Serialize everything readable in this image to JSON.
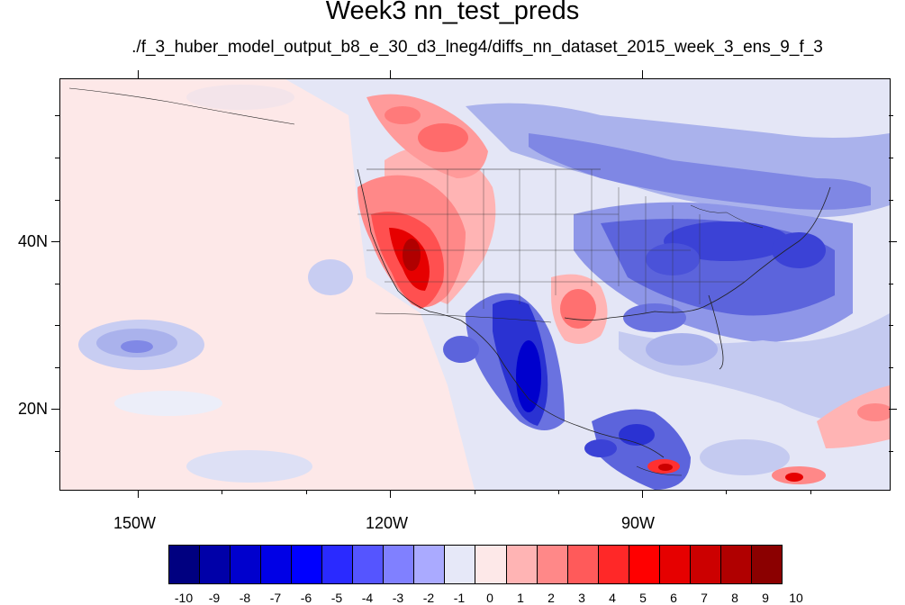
{
  "title": "Week3 nn_test_preds",
  "subtitle": "./f_3_huber_model_output_b8_e_30_d3_lneg4/diffs_nn_dataset_2015_week_3_ens_9_f_3",
  "lat_labels": [
    "40N",
    "20N"
  ],
  "lon_labels": [
    "150W",
    "120W",
    "90W"
  ],
  "colorbar": {
    "labels": [
      "-10",
      "-9",
      "-8",
      "-7",
      "-6",
      "-5",
      "-4",
      "-3",
      "-2",
      "-1",
      "0",
      "1",
      "2",
      "3",
      "4",
      "5",
      "6",
      "7",
      "8",
      "9",
      "10"
    ],
    "colors": [
      "#000080",
      "#0000a8",
      "#0000cd",
      "#0000e6",
      "#0000ff",
      "#2a2aff",
      "#5555ff",
      "#8080ff",
      "#aaaaff",
      "#e6e8f8",
      "#fde8e8",
      "#ffb4b4",
      "#ff8888",
      "#ff5a5a",
      "#ff2828",
      "#ff0000",
      "#e60000",
      "#cc0000",
      "#b00000",
      "#8b0000"
    ]
  },
  "map": {
    "background_color": "#e8eaf7",
    "ocean_pacific_color": "#fde8e8",
    "colormap": "blue-white-red"
  }
}
